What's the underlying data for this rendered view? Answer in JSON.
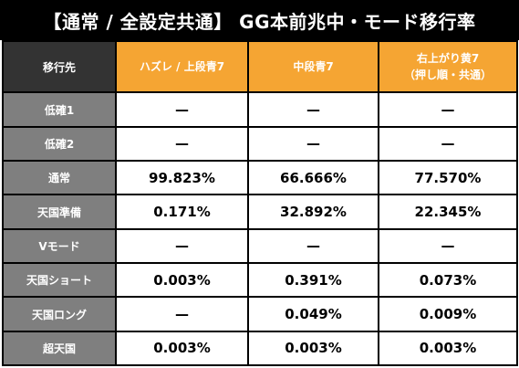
{
  "title": "【通常 / 全設定共通】 GG本前兆中・モード移行率",
  "header": {
    "corner": "移行先",
    "columns": [
      {
        "line1": "ハズレ / 上段青7",
        "line2": ""
      },
      {
        "line1": "中段青7",
        "line2": ""
      },
      {
        "line1": "右上がり黄7",
        "line2": "（押し順・共通）"
      }
    ]
  },
  "rows": [
    {
      "label": "低確1",
      "values": [
        "—",
        "—",
        "—"
      ]
    },
    {
      "label": "低確2",
      "values": [
        "—",
        "—",
        "—"
      ]
    },
    {
      "label": "通常",
      "values": [
        "99.823%",
        "66.666%",
        "77.570%"
      ]
    },
    {
      "label": "天国準備",
      "values": [
        "0.171%",
        "32.892%",
        "22.345%"
      ]
    },
    {
      "label": "Vモード",
      "values": [
        "—",
        "—",
        "—"
      ]
    },
    {
      "label": "天国ショート",
      "values": [
        "0.003%",
        "0.391%",
        "0.073%"
      ]
    },
    {
      "label": "天国ロング",
      "values": [
        "—",
        "0.049%",
        "0.009%"
      ]
    },
    {
      "label": "超天国",
      "values": [
        "0.003%",
        "0.003%",
        "0.003%"
      ]
    }
  ],
  "colors": {
    "title_bg": "#000000",
    "corner_bg": "#333333",
    "header_bg": "#f5a533",
    "row_label_bg": "#7f7f7f",
    "cell_bg": "#ffffff"
  }
}
